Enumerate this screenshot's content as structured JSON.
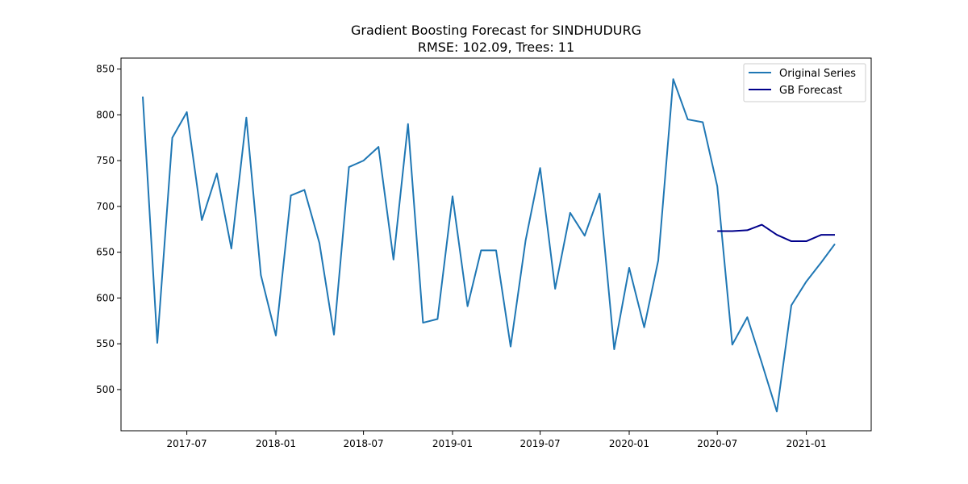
{
  "chart_data": {
    "type": "line",
    "title": "Gradient Boosting Forecast for SINDHUDURG",
    "subtitle": "RMSE: 102.09, Trees: 11",
    "xlabel": "",
    "ylabel": "",
    "xlim": [
      "2017-02-15",
      "2021-05-15"
    ],
    "ylim": [
      455,
      862
    ],
    "x_ticks": [
      "2017-07-01",
      "2018-01-01",
      "2018-07-01",
      "2019-01-01",
      "2019-07-01",
      "2020-01-01",
      "2020-07-01",
      "2021-01-01"
    ],
    "x_tick_labels": [
      "2017-07",
      "2018-01",
      "2018-07",
      "2019-01",
      "2019-07",
      "2020-01",
      "2020-07",
      "2021-01"
    ],
    "y_ticks": [
      500,
      550,
      600,
      650,
      700,
      750,
      800,
      850
    ],
    "grid": false,
    "legend_position": "top-right",
    "series": [
      {
        "name": "Original Series",
        "color": "#1f77b4",
        "x": [
          "2017-04-01",
          "2017-05-01",
          "2017-06-01",
          "2017-07-01",
          "2017-08-01",
          "2017-09-01",
          "2017-10-01",
          "2017-11-01",
          "2017-12-01",
          "2018-01-01",
          "2018-02-01",
          "2018-03-01",
          "2018-04-01",
          "2018-05-01",
          "2018-06-01",
          "2018-07-01",
          "2018-08-01",
          "2018-09-01",
          "2018-10-01",
          "2018-11-01",
          "2018-12-01",
          "2019-01-01",
          "2019-02-01",
          "2019-03-01",
          "2019-04-01",
          "2019-05-01",
          "2019-06-01",
          "2019-07-01",
          "2019-08-01",
          "2019-09-01",
          "2019-10-01",
          "2019-11-01",
          "2019-12-01",
          "2020-01-01",
          "2020-02-01",
          "2020-03-01",
          "2020-04-01",
          "2020-05-01",
          "2020-06-01",
          "2020-07-01",
          "2020-08-01",
          "2020-09-01",
          "2020-10-01",
          "2020-11-01",
          "2020-12-01",
          "2021-01-01",
          "2021-02-01",
          "2021-03-01"
        ],
        "values": [
          820,
          551,
          775,
          803,
          685,
          736,
          654,
          797,
          625,
          559,
          712,
          718,
          660,
          560,
          743,
          750,
          765,
          642,
          790,
          573,
          577,
          711,
          591,
          652,
          652,
          547,
          663,
          742,
          610,
          693,
          668,
          714,
          544,
          633,
          568,
          641,
          839,
          795,
          792,
          722,
          549,
          579,
          529,
          476,
          592,
          618,
          639,
          659
        ]
      },
      {
        "name": "GB Forecast",
        "color": "#00008b",
        "x": [
          "2020-07-01",
          "2020-08-01",
          "2020-09-01",
          "2020-10-01",
          "2020-11-01",
          "2020-12-01",
          "2021-01-01",
          "2021-02-01",
          "2021-03-01"
        ],
        "values": [
          673,
          673,
          674,
          680,
          669,
          662,
          662,
          669,
          669
        ]
      }
    ]
  }
}
